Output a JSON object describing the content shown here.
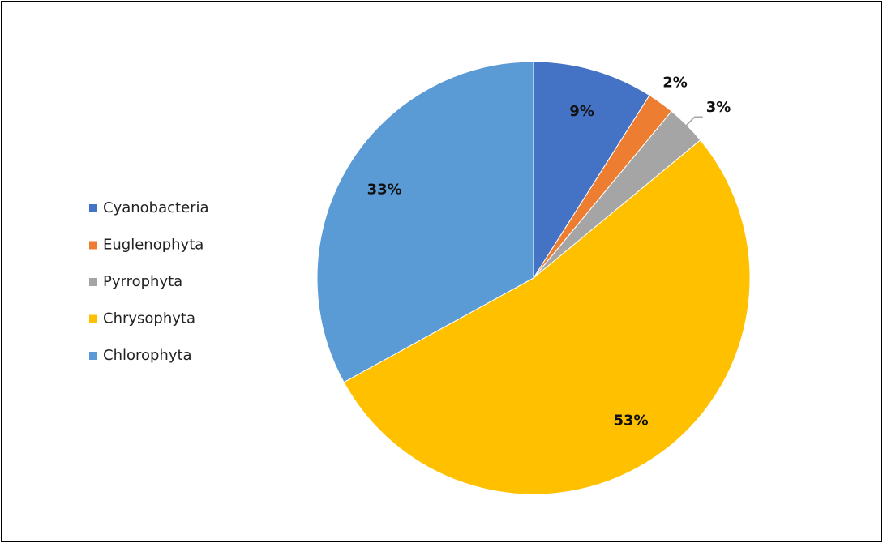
{
  "chart_data": {
    "type": "pie",
    "categories": [
      "Cyanobacteria",
      "Euglenophyta",
      "Pyrrophyta",
      "Chrysophyta",
      "Chlorophyta"
    ],
    "values": [
      9,
      2,
      3,
      53,
      33
    ],
    "value_labels": [
      "9%",
      "2%",
      "3%",
      "53%",
      "33%"
    ],
    "colors": [
      "#4472c4",
      "#ed7d31",
      "#a5a5a5",
      "#ffc000",
      "#5b9bd5"
    ],
    "legend": "left"
  }
}
